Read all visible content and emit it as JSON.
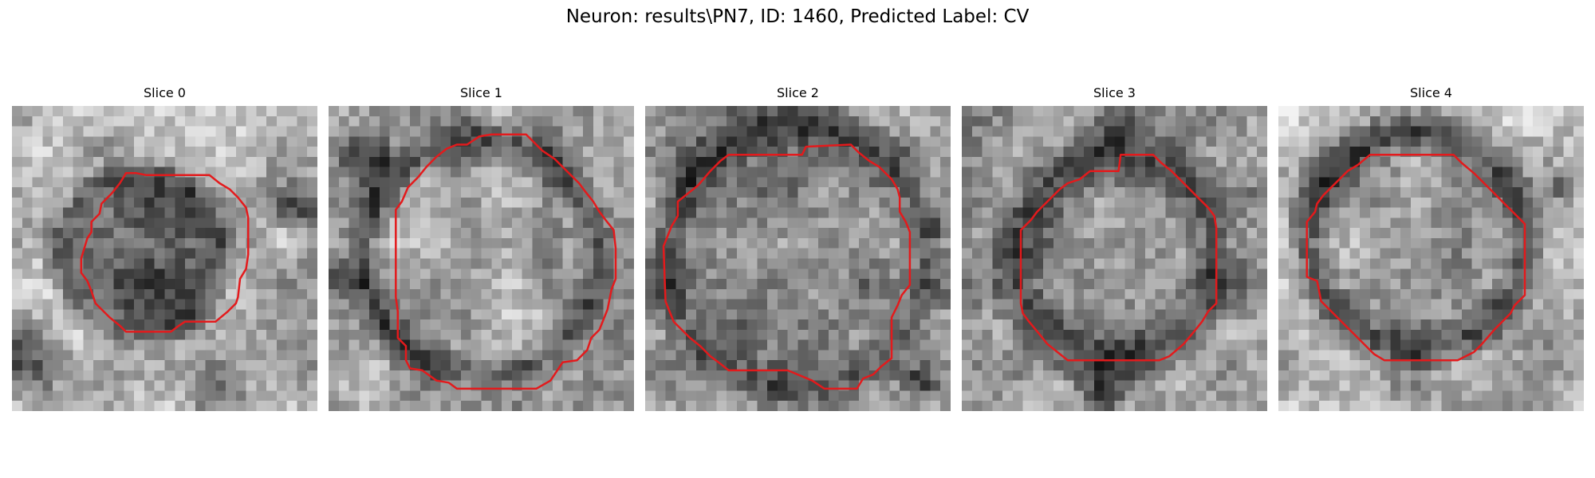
{
  "figure": {
    "title": "Neuron: results\\PN7, ID: 1460, Predicted Label: CV"
  },
  "panels": [
    {
      "title": "Slice 0",
      "contour_color": "#e31a1c"
    },
    {
      "title": "Slice 1",
      "contour_color": "#e31a1c"
    },
    {
      "title": "Slice 2",
      "contour_color": "#e31a1c"
    },
    {
      "title": "Slice 3",
      "contour_color": "#e31a1c"
    },
    {
      "title": "Slice 4",
      "contour_color": "#e31a1c"
    }
  ]
}
